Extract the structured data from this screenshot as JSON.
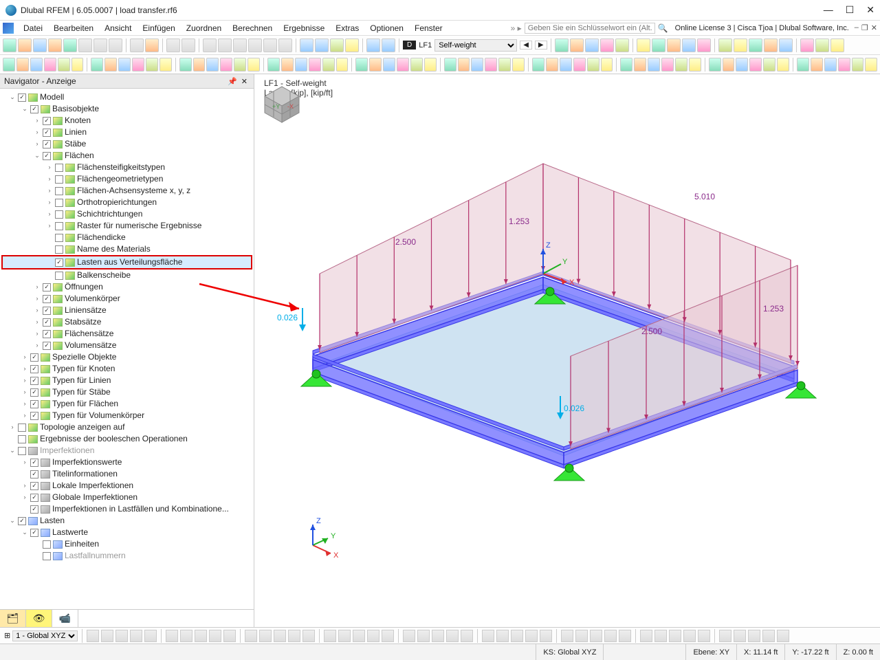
{
  "window": {
    "title": "Dlubal RFEM | 6.05.0007 | load transfer.rf6",
    "license": "Online License 3 | Cisca Tjoa | Dlubal Software, Inc.",
    "keyword_placeholder": "Geben Sie ein Schlüsselwort ein (Alt...",
    "keyword_prefix": "» ▸",
    "mdi_min": "–",
    "mdi_max": "❐",
    "mdi_close": "✕"
  },
  "menu": {
    "items": [
      "Datei",
      "Bearbeiten",
      "Ansicht",
      "Einfügen",
      "Zuordnen",
      "Berechnen",
      "Ergebnisse",
      "Extras",
      "Optionen",
      "Fenster"
    ]
  },
  "loadcase": {
    "tag": "D",
    "id": "LF1",
    "name": "Self-weight"
  },
  "navigator": {
    "title": "Navigator - Anzeige"
  },
  "tree": [
    {
      "d": 0,
      "tw": "v",
      "cb": true,
      "ic": "m",
      "lbl": "Modell"
    },
    {
      "d": 1,
      "tw": "v",
      "cb": true,
      "ic": "m",
      "lbl": "Basisobjekte"
    },
    {
      "d": 2,
      "tw": ">",
      "cb": true,
      "ic": "m",
      "lbl": "Knoten"
    },
    {
      "d": 2,
      "tw": ">",
      "cb": true,
      "ic": "m",
      "lbl": "Linien"
    },
    {
      "d": 2,
      "tw": ">",
      "cb": true,
      "ic": "m",
      "lbl": "Stäbe"
    },
    {
      "d": 2,
      "tw": "v",
      "cb": true,
      "ic": "m",
      "lbl": "Flächen"
    },
    {
      "d": 3,
      "tw": ">",
      "cb": false,
      "ic": "m",
      "lbl": "Flächensteifigkeitstypen"
    },
    {
      "d": 3,
      "tw": ">",
      "cb": false,
      "ic": "m",
      "lbl": "Flächengeometrietypen"
    },
    {
      "d": 3,
      "tw": ">",
      "cb": false,
      "ic": "m",
      "lbl": "Flächen-Achsensysteme x, y, z"
    },
    {
      "d": 3,
      "tw": ">",
      "cb": false,
      "ic": "m",
      "lbl": "Orthotropierichtungen"
    },
    {
      "d": 3,
      "tw": ">",
      "cb": false,
      "ic": "m",
      "lbl": "Schichtrichtungen"
    },
    {
      "d": 3,
      "tw": ">",
      "cb": false,
      "ic": "m",
      "lbl": "Raster für numerische Ergebnisse"
    },
    {
      "d": 3,
      "tw": "",
      "cb": false,
      "ic": "m",
      "lbl": "Flächendicke"
    },
    {
      "d": 3,
      "tw": "",
      "cb": false,
      "ic": "m",
      "lbl": "Name des Materials"
    },
    {
      "d": 3,
      "tw": "",
      "cb": true,
      "ic": "m",
      "lbl": "Lasten aus Verteilungsfläche",
      "hl": true
    },
    {
      "d": 3,
      "tw": "",
      "cb": false,
      "ic": "m",
      "lbl": "Balkenscheibe"
    },
    {
      "d": 2,
      "tw": ">",
      "cb": true,
      "ic": "m",
      "lbl": "Öffnungen"
    },
    {
      "d": 2,
      "tw": ">",
      "cb": true,
      "ic": "m",
      "lbl": "Volumenkörper"
    },
    {
      "d": 2,
      "tw": ">",
      "cb": true,
      "ic": "m",
      "lbl": "Liniensätze"
    },
    {
      "d": 2,
      "tw": ">",
      "cb": true,
      "ic": "m",
      "lbl": "Stabsätze"
    },
    {
      "d": 2,
      "tw": ">",
      "cb": true,
      "ic": "m",
      "lbl": "Flächensätze"
    },
    {
      "d": 2,
      "tw": ">",
      "cb": true,
      "ic": "m",
      "lbl": "Volumensätze"
    },
    {
      "d": 1,
      "tw": ">",
      "cb": true,
      "ic": "m",
      "lbl": "Spezielle Objekte"
    },
    {
      "d": 1,
      "tw": ">",
      "cb": true,
      "ic": "m",
      "lbl": "Typen für Knoten"
    },
    {
      "d": 1,
      "tw": ">",
      "cb": true,
      "ic": "m",
      "lbl": "Typen für Linien"
    },
    {
      "d": 1,
      "tw": ">",
      "cb": true,
      "ic": "m",
      "lbl": "Typen für Stäbe"
    },
    {
      "d": 1,
      "tw": ">",
      "cb": true,
      "ic": "m",
      "lbl": "Typen für Flächen"
    },
    {
      "d": 1,
      "tw": ">",
      "cb": true,
      "ic": "m",
      "lbl": "Typen für Volumenkörper"
    },
    {
      "d": 0,
      "tw": ">",
      "cb": false,
      "ic": "m",
      "lbl": "Topologie anzeigen auf"
    },
    {
      "d": 0,
      "tw": "",
      "cb": false,
      "ic": "m",
      "lbl": "Ergebnisse der booleschen Operationen"
    },
    {
      "d": 0,
      "tw": "v",
      "cb": false,
      "ic": "imp",
      "lbl": "Imperfektionen",
      "dim": true
    },
    {
      "d": 1,
      "tw": ">",
      "cb": true,
      "ic": "imp",
      "lbl": "Imperfektionswerte"
    },
    {
      "d": 1,
      "tw": "",
      "cb": true,
      "ic": "imp",
      "lbl": "Titelinformationen"
    },
    {
      "d": 1,
      "tw": ">",
      "cb": true,
      "ic": "imp",
      "lbl": "Lokale Imperfektionen"
    },
    {
      "d": 1,
      "tw": ">",
      "cb": true,
      "ic": "imp",
      "lbl": "Globale Imperfektionen"
    },
    {
      "d": 1,
      "tw": "",
      "cb": true,
      "ic": "imp",
      "lbl": "Imperfektionen in Lastfällen und Kombinatione..."
    },
    {
      "d": 0,
      "tw": "v",
      "cb": true,
      "ic": "ld",
      "lbl": "Lasten"
    },
    {
      "d": 1,
      "tw": "v",
      "cb": true,
      "ic": "ld",
      "lbl": "Lastwerte"
    },
    {
      "d": 2,
      "tw": "",
      "cb": false,
      "ic": "ld",
      "lbl": "Einheiten"
    },
    {
      "d": 2,
      "tw": "",
      "cb": false,
      "ic": "ld",
      "lbl": "Lastfallnummern",
      "dim": true
    }
  ],
  "viewport": {
    "title1": "LF1 - Self-weight",
    "title2": "Lasten [kip], [kip/ft]",
    "labels": {
      "v1": "2.500",
      "v2": "1.253",
      "v3": "5.010",
      "v4": "0.026",
      "v5": "2.500",
      "v6": "1.253",
      "v7": "0.026"
    },
    "axes": {
      "x": "X",
      "y": "Y",
      "z": "Z"
    },
    "colors": {
      "beam_fill": "#6b6bff",
      "beam_edge": "#3838e8",
      "deck_fill": "#a8cce8",
      "deck_edge": "#7fb8de",
      "load_fill": "#e8c6d2",
      "load_edge": "#b86a8a",
      "arrow": "#b3306a",
      "cyan_arrow": "#00aee8",
      "support": "#36e636",
      "label_purple": "#8a2a8a",
      "label_cyan": "#00aee8"
    }
  },
  "status": {
    "cs": "KS: Global XYZ",
    "plane": "Ebene: XY",
    "x": "X: 11.14 ft",
    "y": "Y: -17.22 ft",
    "z": "Z: 0.00 ft",
    "workplane_select": "1 - Global XYZ"
  }
}
